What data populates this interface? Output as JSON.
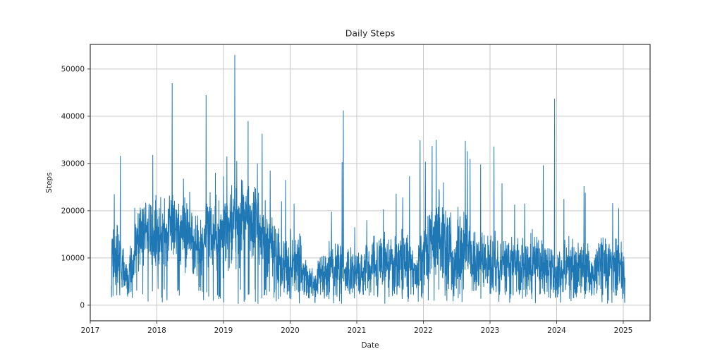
{
  "chart_data": {
    "type": "line",
    "title": "Daily Steps",
    "xlabel": "Date",
    "ylabel": "Steps",
    "series_name": "daily-steps",
    "line_color": "#1f77b4",
    "grid_color": "#c6c6c6",
    "spine_color": "#444444",
    "text_color": "#262626",
    "grid": true,
    "legend": false,
    "x_ticks": [
      2017,
      2018,
      2019,
      2020,
      2021,
      2022,
      2023,
      2024,
      2025
    ],
    "y_ticks": [
      0,
      10000,
      20000,
      30000,
      40000,
      50000
    ],
    "xlim": [
      2017.0,
      2025.402
    ],
    "ylim": [
      -3300,
      55200
    ],
    "data_start": 2017.317,
    "data_end": 2025.025,
    "floor_value": 250,
    "low_day_chance": 0.05,
    "low_day_max": 3200,
    "seed": 42,
    "envelope_start": 2017.3333,
    "monthly_envelope": [
      [
        10000,
        9000
      ],
      [
        8500,
        7500
      ],
      [
        5500,
        4800
      ],
      [
        8000,
        7000
      ],
      [
        14000,
        9000
      ],
      [
        14500,
        9500
      ],
      [
        15500,
        9000
      ],
      [
        14000,
        10000
      ],
      [
        15000,
        9500
      ],
      [
        16000,
        9000
      ],
      [
        16500,
        9500
      ],
      [
        16000,
        9000
      ],
      [
        17000,
        9000
      ],
      [
        15000,
        9500
      ],
      [
        13000,
        10000
      ],
      [
        11500,
        10500
      ],
      [
        14000,
        10000
      ],
      [
        15500,
        9500
      ],
      [
        15000,
        10000
      ],
      [
        13500,
        10500
      ],
      [
        15000,
        10000
      ],
      [
        16000,
        10000
      ],
      [
        17000,
        10000
      ],
      [
        17500,
        9500
      ],
      [
        18000,
        9500
      ],
      [
        17500,
        10000
      ],
      [
        15500,
        10000
      ],
      [
        14000,
        9500
      ],
      [
        13000,
        9000
      ],
      [
        10000,
        8500
      ],
      [
        9500,
        8000
      ],
      [
        9000,
        8000
      ],
      [
        9500,
        8000
      ],
      [
        8500,
        7500
      ],
      [
        6000,
        5500
      ],
      [
        5000,
        4500
      ],
      [
        4500,
        4200
      ],
      [
        6000,
        5500
      ],
      [
        6500,
        6000
      ],
      [
        8500,
        7500
      ],
      [
        8000,
        7000
      ],
      [
        8500,
        7500
      ],
      [
        7000,
        6000
      ],
      [
        6500,
        6000
      ],
      [
        7000,
        6000
      ],
      [
        7500,
        6500
      ],
      [
        8000,
        7000
      ],
      [
        8000,
        7000
      ],
      [
        8500,
        7000
      ],
      [
        9000,
        7500
      ],
      [
        8500,
        7500
      ],
      [
        9500,
        7500
      ],
      [
        9500,
        8000
      ],
      [
        9000,
        7500
      ],
      [
        8500,
        7000
      ],
      [
        9500,
        8000
      ],
      [
        12000,
        9500
      ],
      [
        14000,
        9500
      ],
      [
        15000,
        10000
      ],
      [
        13500,
        9500
      ],
      [
        12500,
        9500
      ],
      [
        8000,
        6500
      ],
      [
        12500,
        9500
      ],
      [
        13000,
        9500
      ],
      [
        10000,
        8000
      ],
      [
        9500,
        8000
      ],
      [
        9000,
        7500
      ],
      [
        8500,
        7500
      ],
      [
        9000,
        7500
      ],
      [
        8500,
        7000
      ],
      [
        9000,
        7500
      ],
      [
        8500,
        7000
      ],
      [
        8500,
        7500
      ],
      [
        8500,
        7000
      ],
      [
        8000,
        7000
      ],
      [
        9000,
        7500
      ],
      [
        8500,
        7000
      ],
      [
        8000,
        7000
      ],
      [
        7500,
        6500
      ],
      [
        7000,
        6000
      ],
      [
        7500,
        6500
      ],
      [
        8000,
        7000
      ],
      [
        8500,
        7000
      ],
      [
        8000,
        7000
      ],
      [
        8500,
        7000
      ],
      [
        7500,
        6500
      ],
      [
        5500,
        5000
      ],
      [
        8000,
        7000
      ],
      [
        8500,
        7000
      ],
      [
        8000,
        7000
      ],
      [
        8500,
        7500
      ],
      [
        8000,
        7000
      ],
      [
        6000,
        5500
      ]
    ],
    "peaks": [
      [
        2017.36,
        23500
      ],
      [
        2017.45,
        31600
      ],
      [
        2017.94,
        31800
      ],
      [
        2018.23,
        47000
      ],
      [
        2018.4,
        26800
      ],
      [
        2018.74,
        44500
      ],
      [
        2018.88,
        28000
      ],
      [
        2019.0,
        27300
      ],
      [
        2019.05,
        31500
      ],
      [
        2019.17,
        53000
      ],
      [
        2019.2,
        30500
      ],
      [
        2019.37,
        39000
      ],
      [
        2019.51,
        30000
      ],
      [
        2019.58,
        36300
      ],
      [
        2019.7,
        28500
      ],
      [
        2019.87,
        22000
      ],
      [
        2019.93,
        26500
      ],
      [
        2020.06,
        21500
      ],
      [
        2020.62,
        19800
      ],
      [
        2020.78,
        30300
      ],
      [
        2020.8,
        41200
      ],
      [
        2020.97,
        16500
      ],
      [
        2021.15,
        18000
      ],
      [
        2021.4,
        20300
      ],
      [
        2021.59,
        23600
      ],
      [
        2021.69,
        22800
      ],
      [
        2021.79,
        27300
      ],
      [
        2021.95,
        34900
      ],
      [
        2022.03,
        30400
      ],
      [
        2022.13,
        33700
      ],
      [
        2022.19,
        35000
      ],
      [
        2022.3,
        26000
      ],
      [
        2022.63,
        34800
      ],
      [
        2022.66,
        32600
      ],
      [
        2022.7,
        31000
      ],
      [
        2022.86,
        29800
      ],
      [
        2023.06,
        33600
      ],
      [
        2023.18,
        25800
      ],
      [
        2023.37,
        21300
      ],
      [
        2023.52,
        21500
      ],
      [
        2023.8,
        29600
      ],
      [
        2023.97,
        43700
      ],
      [
        2024.11,
        22500
      ],
      [
        2024.41,
        25200
      ],
      [
        2024.43,
        23800
      ],
      [
        2024.84,
        21600
      ],
      [
        2024.93,
        20500
      ],
      [
        2025.02,
        500
      ]
    ]
  }
}
